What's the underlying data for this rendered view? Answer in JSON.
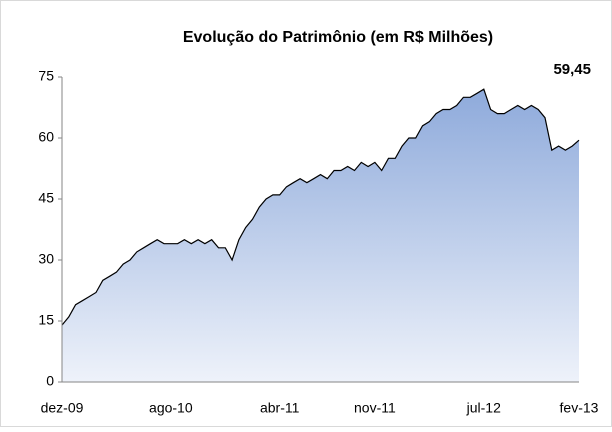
{
  "chart_data": {
    "type": "area",
    "title": "Evolução do Patrimônio (em R$ Milhões)",
    "categories": [
      "dez-09",
      null,
      null,
      null,
      null,
      null,
      null,
      null,
      null,
      null,
      null,
      null,
      null,
      null,
      null,
      null,
      "ago-10",
      null,
      null,
      null,
      null,
      null,
      null,
      null,
      null,
      null,
      null,
      null,
      null,
      null,
      null,
      null,
      "abr-11",
      null,
      null,
      null,
      null,
      null,
      null,
      null,
      null,
      null,
      null,
      null,
      null,
      null,
      "nov-11",
      null,
      null,
      null,
      null,
      null,
      null,
      null,
      null,
      null,
      null,
      null,
      null,
      null,
      null,
      null,
      "jul-12",
      null,
      null,
      null,
      null,
      null,
      null,
      null,
      null,
      null,
      null,
      null,
      null,
      null,
      "fev-13"
    ],
    "values": [
      14,
      16,
      19,
      20,
      21,
      22,
      25,
      26,
      27,
      29,
      30,
      32,
      33,
      34,
      35,
      34,
      34,
      34,
      35,
      34,
      35,
      34,
      35,
      33,
      33,
      30,
      35,
      38,
      40,
      43,
      45,
      46,
      46,
      48,
      49,
      50,
      49,
      50,
      51,
      50,
      52,
      52,
      53,
      52,
      54,
      53,
      54,
      52,
      55,
      55,
      58,
      60,
      60,
      63,
      64,
      66,
      67,
      67,
      68,
      70,
      70,
      71,
      72,
      67,
      66,
      66,
      67,
      68,
      67,
      68,
      67,
      65,
      57,
      58,
      57,
      58,
      59.45
    ],
    "value_labels": [
      null,
      null,
      null,
      null,
      null,
      null,
      null,
      null,
      null,
      null,
      null,
      null,
      null,
      null,
      null,
      null,
      null,
      null,
      null,
      null,
      null,
      null,
      null,
      null,
      null,
      null,
      null,
      null,
      null,
      null,
      null,
      null,
      null,
      null,
      null,
      null,
      null,
      null,
      null,
      null,
      null,
      null,
      null,
      null,
      null,
      null,
      null,
      null,
      null,
      null,
      null,
      null,
      null,
      null,
      null,
      null,
      null,
      null,
      null,
      null,
      null,
      null,
      null,
      null,
      null,
      null,
      null,
      null,
      null,
      null,
      null,
      null,
      null,
      null,
      null,
      null,
      "59,45"
    ],
    "color": "#8eaadb",
    "line_color": "#000000",
    "ylim": [
      0,
      75
    ],
    "yticks": [
      0,
      15,
      30,
      45,
      60,
      75
    ],
    "grid": false
  }
}
